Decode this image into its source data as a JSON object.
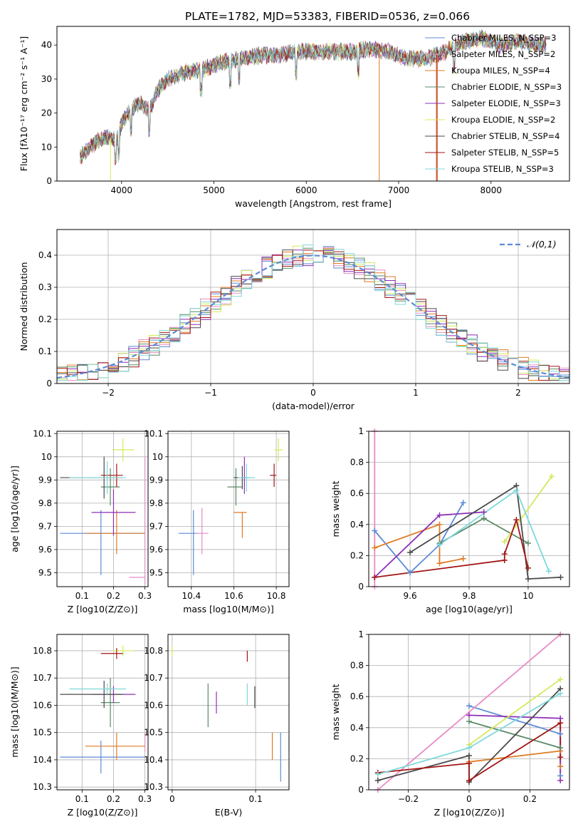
{
  "colors": {
    "chabrier_miles": "#5b8bd6",
    "salpeter_miles": "#e98bc6",
    "kroupa_miles": "#e07b25",
    "chabrier_elodie": "#5a8a67",
    "salpeter_elodie": "#8c2fb8",
    "kroupa_elodie": "#d3ea5b",
    "chabrier_stelib": "#4a4a4a",
    "salpeter_stelib": "#a31515",
    "kroupa_stelib": "#7fd8da"
  },
  "chart_data": [
    {
      "id": "spectrum",
      "type": "line",
      "title": "PLATE=1782, MJD=53383, FIBERID=0536, z=0.066",
      "xlabel": "wavelength [Angstrom, rest frame]",
      "ylabel": "Flux [fλ10⁻¹⁷ erg cm⁻² s⁻¹ A⁻¹]",
      "xlim": [
        3300,
        8850
      ],
      "ylim": [
        0,
        45.5
      ],
      "xticks": [
        4000,
        5000,
        6000,
        7000,
        8000
      ],
      "yticks": [
        0,
        10,
        20,
        30,
        40
      ],
      "grid": false,
      "legend_position": "top-right",
      "legend": [
        "Chabrier MILES, N_SSP=3",
        "Salpeter MILES, N_SSP=2",
        "Kroupa MILES, N_SSP=4",
        "Chabrier ELODIE, N_SSP=3",
        "Salpeter ELODIE, N_SSP=3",
        "Kroupa ELODIE, N_SSP=2",
        "Chabrier STELIB, N_SSP=4",
        "Salpeter STELIB, N_SSP=5",
        "Kroupa STELIB, N_SSP=3"
      ],
      "continuum": {
        "x": [
          3550,
          3650,
          3750,
          3850,
          3950,
          4000,
          4100,
          4200,
          4300,
          4400,
          4500,
          4700,
          4900,
          5100,
          5300,
          5500,
          5700,
          5900,
          6100,
          6300,
          6500,
          6700,
          6900,
          7100,
          7300,
          7500,
          7700,
          7900,
          8100,
          8300,
          8500
        ],
        "y": [
          7,
          10,
          12,
          13,
          12,
          17,
          21,
          23,
          21,
          27,
          30,
          32,
          33,
          35,
          36,
          37,
          37,
          38,
          38,
          38,
          38,
          39,
          38,
          36,
          36,
          38,
          41,
          42,
          40,
          41,
          40
        ]
      }
    },
    {
      "id": "residual_hist",
      "type": "line",
      "xlabel": "(data-model)/error",
      "ylabel": "Normed distribution",
      "xlim": [
        -2.5,
        2.5
      ],
      "ylim": [
        0,
        0.48
      ],
      "xticks": [
        -2,
        -1,
        0,
        1,
        2
      ],
      "yticks": [
        0.0,
        0.1,
        0.2,
        0.3,
        0.4
      ],
      "grid": true,
      "legend_position": "top-right",
      "legend_label": "𝒩(0,1)",
      "bin_width": 0.1
    },
    {
      "id": "age_vs_Z",
      "type": "scatter",
      "xlabel": "Z [log10(Z/Z⊙)]",
      "ylabel": "age  [log10(age/yr)]",
      "xlim": [
        0.02,
        0.31
      ],
      "ylim": [
        9.44,
        10.11
      ],
      "xticks": [
        0.1,
        0.2,
        0.3
      ],
      "yticks": [
        9.5,
        9.6,
        9.7,
        9.8,
        9.9,
        10.0,
        10.1
      ],
      "grid": true,
      "points": [
        {
          "x": 0.16,
          "y": 9.67,
          "xerr": [
            0.13,
            0.14
          ],
          "yerr": [
            0.18,
            0.1
          ]
        },
        {
          "x": 0.3,
          "y": 9.48,
          "xerr": [
            0.05,
            0.0
          ],
          "yerr": [
            0.03,
            0.52
          ]
        },
        {
          "x": 0.21,
          "y": 9.67,
          "xerr": [
            0.1,
            0.09
          ],
          "yerr": [
            0.09,
            0.1
          ]
        },
        {
          "x": 0.19,
          "y": 9.87,
          "xerr": [
            0.03,
            0.03
          ],
          "yerr": [
            0.08,
            0.08
          ]
        },
        {
          "x": 0.2,
          "y": 9.76,
          "xerr": [
            0.07,
            0.07
          ],
          "yerr": [
            0.1,
            0.1
          ]
        },
        {
          "x": 0.23,
          "y": 10.03,
          "xerr": [
            0.035,
            0.035
          ],
          "yerr": [
            0.05,
            0.05
          ]
        },
        {
          "x": 0.17,
          "y": 9.91,
          "xerr": [
            0.14,
            0.06
          ],
          "yerr": [
            0.09,
            0.09
          ]
        },
        {
          "x": 0.21,
          "y": 9.92,
          "xerr": [
            0.05,
            0.02
          ],
          "yerr": [
            0.05,
            0.05
          ]
        },
        {
          "x": 0.18,
          "y": 9.91,
          "xerr": [
            0.12,
            0.06
          ],
          "yerr": [
            0.07,
            0.07
          ]
        }
      ]
    },
    {
      "id": "age_vs_mass",
      "type": "scatter",
      "xlabel": "mass [log10(M/M⊙)]",
      "ylabel": "",
      "xlim": [
        10.29,
        10.86
      ],
      "ylim": [
        9.44,
        10.11
      ],
      "xticks": [
        10.4,
        10.6,
        10.8
      ],
      "yticks": [
        9.5,
        9.6,
        9.7,
        9.8,
        9.9,
        10.0,
        10.1
      ],
      "grid": true,
      "points": [
        {
          "x": 10.41,
          "y": 9.67,
          "xerr": [
            0.07,
            0.02
          ],
          "yerr": [
            0.18,
            0.1
          ]
        },
        {
          "x": 10.45,
          "y": 9.67,
          "xerr": [
            0.03,
            0.03
          ],
          "yerr": [
            0.09,
            0.11
          ]
        },
        {
          "x": 10.64,
          "y": 9.76,
          "xerr": [
            0.04,
            0.02
          ],
          "yerr": [
            0.11,
            0.0
          ]
        },
        {
          "x": 10.61,
          "y": 9.87,
          "xerr": [
            0.04,
            0.03
          ],
          "yerr": [
            0.08,
            0.08
          ]
        },
        {
          "x": 10.65,
          "y": 9.91,
          "xerr": [
            0.01,
            0.01
          ],
          "yerr": [
            0.07,
            0.09
          ]
        },
        {
          "x": 10.81,
          "y": 10.03,
          "xerr": [
            0.02,
            0.02
          ],
          "yerr": [
            0.05,
            0.05
          ]
        },
        {
          "x": 10.64,
          "y": 9.91,
          "xerr": [
            0.04,
            0.04
          ],
          "yerr": [
            0.05,
            0.05
          ]
        },
        {
          "x": 10.79,
          "y": 9.92,
          "xerr": [
            0.02,
            0.01
          ],
          "yerr": [
            0.05,
            0.05
          ]
        },
        {
          "x": 10.66,
          "y": 9.91,
          "xerr": [
            0.04,
            0.04
          ],
          "yerr": [
            0.06,
            0.06
          ]
        }
      ]
    },
    {
      "id": "weight_vs_age",
      "type": "line",
      "xlabel": "age  [log10(age/yr)]",
      "ylabel": "mass weight",
      "xlim": [
        9.46,
        10.14
      ],
      "ylim": [
        0,
        1
      ],
      "xticks": [
        9.6,
        9.8,
        10.0
      ],
      "yticks": [
        0.0,
        0.2,
        0.4,
        0.6,
        0.8,
        1.0
      ],
      "grid": true,
      "series": [
        {
          "color_key": "chabrier_miles",
          "x": [
            9.48,
            9.6,
            9.7,
            9.78
          ],
          "y": [
            0.36,
            0.09,
            0.27,
            0.54
          ]
        },
        {
          "color_key": "salpeter_miles",
          "x": [
            9.48,
            9.48
          ],
          "y": [
            0.0,
            1.0
          ]
        },
        {
          "color_key": "kroupa_miles",
          "x": [
            9.48,
            9.7,
            9.7,
            9.78
          ],
          "y": [
            0.25,
            0.4,
            0.15,
            0.18
          ]
        },
        {
          "color_key": "chabrier_elodie",
          "x": [
            9.7,
            9.85,
            10.0
          ],
          "y": [
            0.28,
            0.44,
            0.28
          ]
        },
        {
          "color_key": "salpeter_elodie",
          "x": [
            9.48,
            9.7,
            9.85
          ],
          "y": [
            0.06,
            0.46,
            0.48
          ]
        },
        {
          "color_key": "kroupa_elodie",
          "x": [
            9.92,
            10.08
          ],
          "y": [
            0.29,
            0.71
          ]
        },
        {
          "color_key": "chabrier_stelib",
          "x": [
            9.6,
            9.96,
            10.0,
            10.11
          ],
          "y": [
            0.22,
            0.65,
            0.05,
            0.06
          ]
        },
        {
          "color_key": "salpeter_stelib",
          "x": [
            9.48,
            9.92,
            9.92,
            9.96,
            10.0
          ],
          "y": [
            0.06,
            0.17,
            0.21,
            0.43,
            0.12
          ]
        },
        {
          "color_key": "kroupa_stelib",
          "x": [
            9.7,
            9.96,
            10.07
          ],
          "y": [
            0.27,
            0.62,
            0.1
          ]
        }
      ]
    },
    {
      "id": "mass_vs_Z",
      "type": "scatter",
      "xlabel": "Z [log10(Z/Z⊙)]",
      "ylabel": "mass [log10(M/M⊙)]",
      "xlim": [
        0.02,
        0.31
      ],
      "ylim": [
        10.29,
        10.86
      ],
      "xticks": [
        0.1,
        0.2,
        0.3
      ],
      "yticks": [
        10.3,
        10.4,
        10.5,
        10.6,
        10.7,
        10.8
      ],
      "grid": true,
      "points": [
        {
          "x": 0.16,
          "y": 10.41,
          "xerr": [
            0.13,
            0.14
          ],
          "yerr": [
            0.06,
            0.06
          ]
        },
        {
          "x": 0.3,
          "y": 10.45,
          "xerr": [
            0.0,
            0.0
          ],
          "yerr": [
            0.02,
            0.05
          ]
        },
        {
          "x": 0.21,
          "y": 10.45,
          "xerr": [
            0.1,
            0.09
          ],
          "yerr": [
            0.05,
            0.05
          ]
        },
        {
          "x": 0.19,
          "y": 10.61,
          "xerr": [
            0.03,
            0.03
          ],
          "yerr": [
            0.09,
            0.09
          ]
        },
        {
          "x": 0.2,
          "y": 10.64,
          "xerr": [
            0.07,
            0.07
          ],
          "yerr": [
            0.03,
            0.03
          ]
        },
        {
          "x": 0.23,
          "y": 10.8,
          "xerr": [
            0.035,
            0.035
          ],
          "yerr": [
            0.02,
            0.02
          ]
        },
        {
          "x": 0.17,
          "y": 10.64,
          "xerr": [
            0.14,
            0.06
          ],
          "yerr": [
            0.05,
            0.05
          ]
        },
        {
          "x": 0.21,
          "y": 10.79,
          "xerr": [
            0.05,
            0.02
          ],
          "yerr": [
            0.02,
            0.02
          ]
        },
        {
          "x": 0.18,
          "y": 10.66,
          "xerr": [
            0.12,
            0.06
          ],
          "yerr": [
            0.02,
            0.02
          ]
        }
      ]
    },
    {
      "id": "mass_vs_ebv",
      "type": "scatter",
      "xlabel": "E(B-V)",
      "ylabel": "",
      "xlim": [
        -0.005,
        0.14
      ],
      "ylim": [
        10.29,
        10.86
      ],
      "xticks": [
        0.0,
        0.1
      ],
      "yticks": [
        10.3,
        10.4,
        10.5,
        10.6,
        10.7,
        10.8
      ],
      "grid": true,
      "points": [
        {
          "x": 0.13,
          "y": 10.41,
          "yerr": [
            0.09,
            0.09
          ]
        },
        {
          "x": 0.14,
          "y": 10.46,
          "yerr": [
            0.03,
            0.03
          ]
        },
        {
          "x": 0.12,
          "y": 10.45,
          "yerr": [
            0.05,
            0.05
          ]
        },
        {
          "x": 0.043,
          "y": 10.6,
          "yerr": [
            0.08,
            0.08
          ]
        },
        {
          "x": 0.053,
          "y": 10.61,
          "yerr": [
            0.04,
            0.04
          ]
        },
        {
          "x": 0.0,
          "y": 10.8,
          "yerr": [
            0.02,
            0.02
          ]
        },
        {
          "x": 0.099,
          "y": 10.63,
          "yerr": [
            0.04,
            0.04
          ]
        },
        {
          "x": 0.09,
          "y": 10.78,
          "yerr": [
            0.02,
            0.02
          ]
        },
        {
          "x": 0.09,
          "y": 10.64,
          "yerr": [
            0.04,
            0.04
          ]
        }
      ]
    },
    {
      "id": "weight_vs_Z",
      "type": "line",
      "xlabel": "Z [log10(Z/Z⊙)]",
      "ylabel": "mass weight",
      "xlim": [
        -0.33,
        0.33
      ],
      "ylim": [
        0,
        1
      ],
      "xticks": [
        -0.2,
        0.0,
        0.2
      ],
      "yticks": [
        0.0,
        0.2,
        0.4,
        0.6,
        0.8,
        1.0
      ],
      "grid": true,
      "series": [
        {
          "color_key": "chabrier_miles",
          "x": [
            0.0,
            0.3,
            0.3
          ],
          "y": [
            0.54,
            0.36,
            0.09
          ]
        },
        {
          "color_key": "salpeter_miles",
          "x": [
            -0.3,
            0.3
          ],
          "y": [
            0.0,
            1.0
          ]
        },
        {
          "color_key": "kroupa_miles",
          "x": [
            0.0,
            0.3,
            0.3
          ],
          "y": [
            0.18,
            0.25,
            0.15
          ]
        },
        {
          "color_key": "chabrier_elodie",
          "x": [
            0.0,
            0.3
          ],
          "y": [
            0.44,
            0.27
          ]
        },
        {
          "color_key": "salpeter_elodie",
          "x": [
            0.0,
            0.3,
            0.3
          ],
          "y": [
            0.48,
            0.46,
            0.06
          ]
        },
        {
          "color_key": "kroupa_elodie",
          "x": [
            0.0,
            0.3
          ],
          "y": [
            0.29,
            0.71
          ]
        },
        {
          "color_key": "chabrier_stelib",
          "x": [
            -0.3,
            0.0,
            0.0,
            0.3
          ],
          "y": [
            0.06,
            0.22,
            0.05,
            0.65
          ]
        },
        {
          "color_key": "salpeter_stelib",
          "x": [
            -0.3,
            0.0,
            0.0,
            0.3,
            0.3
          ],
          "y": [
            0.11,
            0.17,
            0.06,
            0.43,
            0.21
          ]
        },
        {
          "color_key": "kroupa_stelib",
          "x": [
            -0.3,
            0.0,
            0.3
          ],
          "y": [
            0.1,
            0.27,
            0.62
          ]
        }
      ]
    }
  ]
}
